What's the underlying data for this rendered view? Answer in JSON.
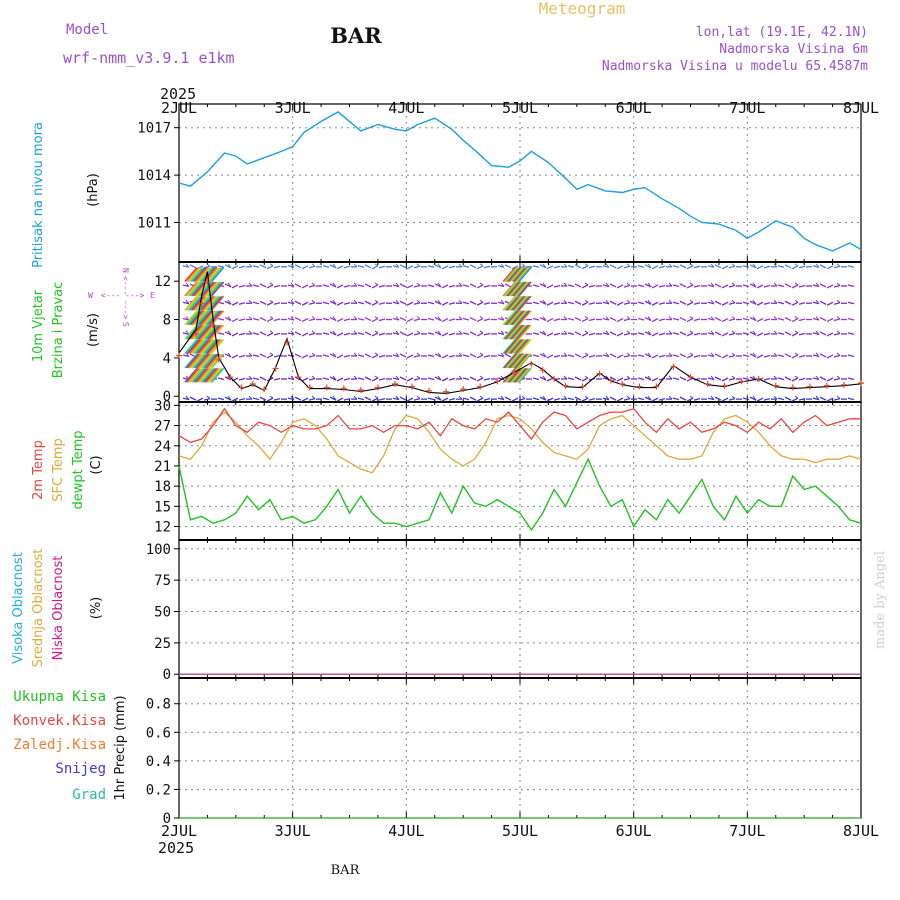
{
  "header": {
    "model_label": "Model",
    "model_name": "wrf-nmm_v3.9.1 e1km",
    "station": "BAR",
    "title": "Meteogram",
    "coords": "lon,lat (19.1E, 42.1N)",
    "altitude": "Nadmorska Visina 6m",
    "model_altitude": "Nadmorska Visina u modelu 65.4587m",
    "footer_station": "BAR",
    "credit": "made by Angel"
  },
  "colors": {
    "pressure": "#1a9fdf",
    "temp2m": "#e8463f",
    "sfc_temp": "#e0a83a",
    "dewpt": "#22c322",
    "wind_speed_line": "#000000",
    "wind_gust": "#e04a2a",
    "compass": "#b048c8",
    "high_cloud": "#22aee0",
    "mid_cloud": "#e0a83a",
    "low_cloud": "#d0188a",
    "total_precip": "#22c322",
    "conv_precip": "#e8463f",
    "frz_precip": "#ef7f30",
    "snow": "#3a3ad8",
    "grad": "#2ab8a8",
    "model_text": "#9a4fcf",
    "title_text": "#e8c060"
  },
  "chart_data": [
    {
      "type": "line",
      "name": "pressure",
      "ylabel": "Pritisak na nivou mora",
      "unit": "(hPa)",
      "yticks": [
        1011,
        1014,
        1017
      ],
      "ylim": [
        1008.5,
        1018.5
      ],
      "x": [
        0,
        0.1,
        0.25,
        0.4,
        0.5,
        0.6,
        0.75,
        0.9,
        1.0,
        1.1,
        1.25,
        1.4,
        1.5,
        1.6,
        1.75,
        1.9,
        2.0,
        2.1,
        2.25,
        2.4,
        2.5,
        2.6,
        2.75,
        2.9,
        3.0,
        3.1,
        3.25,
        3.4,
        3.5,
        3.6,
        3.75,
        3.9,
        4.0,
        4.1,
        4.25,
        4.4,
        4.5,
        4.6,
        4.75,
        4.9,
        5.0,
        5.1,
        5.25,
        5.4,
        5.5,
        5.6,
        5.75,
        5.9,
        6.0
      ],
      "y": [
        1013.5,
        1013.3,
        1014.2,
        1015.4,
        1015.2,
        1014.7,
        1015.1,
        1015.5,
        1015.8,
        1016.7,
        1017.4,
        1018.0,
        1017.4,
        1016.8,
        1017.2,
        1016.9,
        1016.8,
        1017.2,
        1017.6,
        1016.9,
        1016.2,
        1015.6,
        1014.6,
        1014.5,
        1014.9,
        1015.5,
        1014.8,
        1013.8,
        1013.1,
        1013.4,
        1013.0,
        1012.9,
        1013.1,
        1013.2,
        1012.5,
        1011.9,
        1011.4,
        1011.0,
        1010.9,
        1010.5,
        1010.0,
        1010.4,
        1011.1,
        1010.7,
        1010.0,
        1009.6,
        1009.2,
        1009.7,
        1009.3
      ]
    },
    {
      "type": "line",
      "name": "wind",
      "ylabel_line1": "10m Vjetar",
      "ylabel_line2": "Brzina i Pravac",
      "unit": "(m/s)",
      "yticks": [
        0,
        4,
        8,
        12
      ],
      "ylim": [
        -0.6,
        14
      ],
      "compass": {
        "w": "W",
        "e": "E",
        "n": "N",
        "s": "S",
        "west_arrow": "<---",
        "east_arrow": "--->"
      },
      "x": [
        0.0,
        0.15,
        0.2,
        0.25,
        0.3,
        0.35,
        0.45,
        0.55,
        0.65,
        0.75,
        0.85,
        0.95,
        1.05,
        1.15,
        1.3,
        1.45,
        1.6,
        1.75,
        1.9,
        2.05,
        2.2,
        2.35,
        2.5,
        2.65,
        2.8,
        2.95,
        3.1,
        3.2,
        3.3,
        3.4,
        3.55,
        3.7,
        3.8,
        3.9,
        4.05,
        4.2,
        4.35,
        4.5,
        4.65,
        4.8,
        4.95,
        5.1,
        5.25,
        5.4,
        5.55,
        5.7,
        5.85,
        6.0
      ],
      "speed": [
        4.5,
        7.0,
        10.5,
        13.0,
        8.0,
        4.0,
        2.0,
        0.8,
        1.2,
        0.6,
        3.0,
        6.0,
        2.0,
        0.8,
        0.8,
        0.7,
        0.5,
        0.8,
        1.2,
        0.9,
        0.4,
        0.3,
        0.6,
        0.9,
        1.5,
        2.5,
        3.5,
        2.8,
        1.8,
        1.0,
        0.9,
        2.4,
        1.6,
        1.2,
        0.9,
        0.9,
        3.2,
        2.0,
        1.2,
        1.0,
        1.5,
        1.8,
        1.0,
        0.8,
        0.9,
        1.0,
        1.1,
        1.3
      ]
    },
    {
      "type": "line",
      "name": "temperature",
      "label_temp2m": "2m Temp",
      "label_sfc": "SFC Temp",
      "label_dewpt": "dewpt Temp",
      "unit": "(C)",
      "yticks": [
        12,
        15,
        18,
        21,
        24,
        27,
        30
      ],
      "ylim": [
        10,
        30.5
      ],
      "x": [
        0,
        0.1,
        0.2,
        0.3,
        0.4,
        0.5,
        0.6,
        0.7,
        0.8,
        0.9,
        1.0,
        1.1,
        1.2,
        1.3,
        1.4,
        1.5,
        1.6,
        1.7,
        1.8,
        1.9,
        2.0,
        2.1,
        2.2,
        2.3,
        2.4,
        2.5,
        2.6,
        2.7,
        2.8,
        2.9,
        3.0,
        3.1,
        3.2,
        3.3,
        3.4,
        3.5,
        3.6,
        3.7,
        3.8,
        3.9,
        4.0,
        4.1,
        4.2,
        4.3,
        4.4,
        4.5,
        4.6,
        4.7,
        4.8,
        4.9,
        5.0,
        5.1,
        5.2,
        5.3,
        5.4,
        5.5,
        5.6,
        5.7,
        5.8,
        5.9,
        6.0
      ],
      "temp2m": [
        25.5,
        24.5,
        25.0,
        27.0,
        29.5,
        27.0,
        26.0,
        27.5,
        27.0,
        26.0,
        27.0,
        26.5,
        26.5,
        27.0,
        28.5,
        26.5,
        26.5,
        27.0,
        26.0,
        27.0,
        27.0,
        26.5,
        27.5,
        25.5,
        28.0,
        27.0,
        26.5,
        28.0,
        27.5,
        29.0,
        27.0,
        25.0,
        27.5,
        29.0,
        28.5,
        26.5,
        27.5,
        28.5,
        29.0,
        29.0,
        29.5,
        27.5,
        26.0,
        28.0,
        26.5,
        27.5,
        26.0,
        26.5,
        27.5,
        27.0,
        26.0,
        27.5,
        26.5,
        28.0,
        26.0,
        27.5,
        28.5,
        27.0,
        27.5,
        28.0,
        28.0
      ],
      "sfc_temp": [
        22.5,
        22.0,
        24.0,
        27.5,
        29.0,
        27.5,
        25.5,
        24.0,
        22.0,
        24.5,
        27.5,
        28.0,
        27.0,
        25.0,
        22.5,
        21.5,
        20.5,
        20.0,
        22.5,
        26.5,
        28.5,
        28.0,
        26.0,
        23.5,
        22.0,
        21.0,
        22.0,
        24.5,
        28.0,
        28.5,
        28.0,
        26.5,
        24.5,
        23.0,
        22.5,
        22.0,
        23.5,
        27.0,
        28.0,
        28.5,
        27.0,
        25.5,
        24.0,
        22.5,
        22.0,
        22.0,
        22.5,
        26.0,
        28.0,
        28.5,
        27.5,
        26.0,
        24.0,
        22.5,
        22.0,
        22.0,
        21.5,
        22.0,
        22.0,
        22.5,
        22.0
      ],
      "dewpt": [
        21.0,
        13.0,
        13.5,
        12.5,
        13.0,
        14.0,
        16.5,
        14.5,
        16.0,
        13.0,
        13.5,
        12.5,
        13.0,
        15.0,
        17.5,
        14.0,
        16.5,
        14.0,
        12.5,
        12.5,
        12.0,
        12.5,
        13.0,
        17.0,
        14.0,
        18.0,
        15.5,
        15.0,
        16.0,
        15.0,
        14.0,
        11.5,
        14.0,
        17.5,
        15.0,
        18.5,
        22.0,
        18.0,
        15.0,
        16.0,
        12.0,
        14.5,
        13.0,
        16.0,
        14.0,
        16.5,
        19.0,
        15.0,
        13.0,
        16.5,
        14.0,
        16.0,
        15.0,
        15.0,
        19.5,
        17.5,
        18.0,
        16.5,
        15.0,
        13.0,
        12.5
      ]
    },
    {
      "type": "line",
      "name": "clouds",
      "label_high": "Visoka Oblacnost",
      "label_mid": "Srednja Oblacnost",
      "label_low": "Niska Oblacnost",
      "unit": "(%)",
      "yticks": [
        0,
        25,
        50,
        75,
        100
      ],
      "ylim": [
        -3,
        107
      ],
      "x": [
        0,
        6
      ],
      "high": [
        0,
        0
      ],
      "mid": [
        0,
        0
      ],
      "low": [
        0,
        0
      ]
    },
    {
      "type": "bar",
      "name": "precip",
      "label_total": "Ukupna Kisa",
      "label_conv": "Konvek.Kisa",
      "label_frz": "Zaledj.Kisa",
      "label_snow": "Snijeg",
      "label_grad": "Grad",
      "ylabel": "1hr Precip (mm)",
      "yticks": [
        0,
        0.2,
        0.4,
        0.6,
        0.8
      ],
      "ytick_labels": [
        "0",
        "0.2",
        "0.4",
        "0.6",
        "0.8"
      ],
      "ylim": [
        0,
        0.98
      ],
      "x": [
        0,
        6
      ],
      "total": [
        0,
        0
      ]
    }
  ],
  "time_axis": {
    "year_top": "2025",
    "year_bottom": "2025",
    "labels": [
      "2JUL",
      "3JUL",
      "4JUL",
      "5JUL",
      "6JUL",
      "7JUL",
      "8JUL"
    ],
    "xlim": [
      0,
      6
    ]
  }
}
